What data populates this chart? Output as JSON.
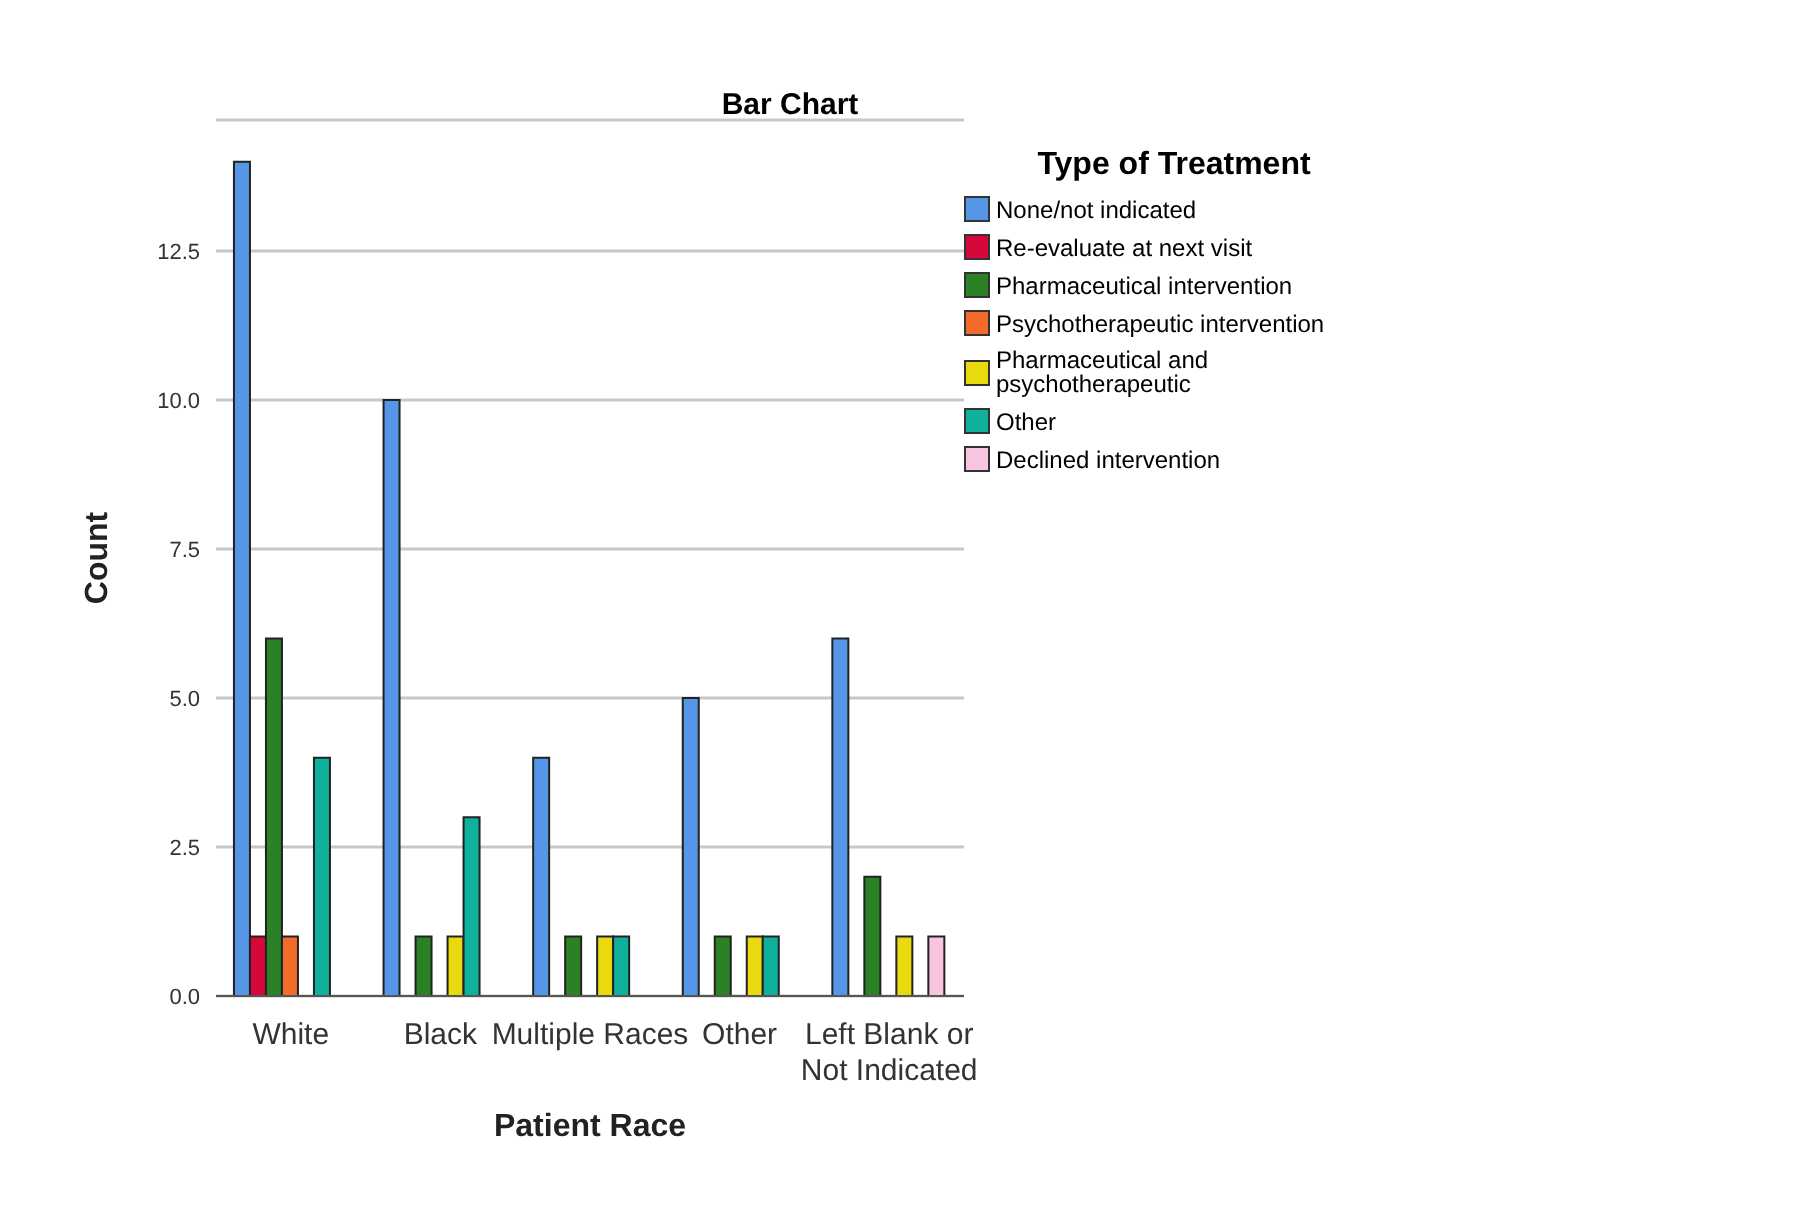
{
  "chart_data": {
    "type": "bar",
    "title": "Bar Chart",
    "xlabel": "Patient Race",
    "ylabel": "Count",
    "legend_title": "Type of Treatment",
    "categories": [
      "White",
      "Black",
      "Multiple Races",
      "Other",
      "Left Blank or Not Indicated"
    ],
    "series": [
      {
        "name": "None/not indicated",
        "color": "#5596e6",
        "values": [
          14,
          10,
          4,
          5,
          6
        ]
      },
      {
        "name": "Re-evaluate at next visit",
        "color": "#d6083b",
        "values": [
          1,
          0,
          0,
          0,
          0
        ]
      },
      {
        "name": "Pharmaceutical intervention",
        "color": "#2a8126",
        "values": [
          6,
          1,
          1,
          1,
          2
        ]
      },
      {
        "name": "Psychotherapeutic intervention",
        "color": "#f36b2a",
        "values": [
          1,
          0,
          0,
          0,
          0
        ]
      },
      {
        "name": "Pharmaceutical and psychotherapeutic",
        "color": "#e8da0e",
        "values": [
          0,
          1,
          1,
          1,
          1
        ]
      },
      {
        "name": "Other",
        "color": "#0fb09c",
        "values": [
          4,
          3,
          1,
          1,
          0
        ]
      },
      {
        "name": "Declined intervention",
        "color": "#f9c4e0",
        "values": [
          0,
          0,
          0,
          0,
          1
        ]
      }
    ],
    "ylim": [
      0,
      14.7
    ],
    "yticks": [
      {
        "value": 0,
        "label": "0.0"
      },
      {
        "value": 2.5,
        "label": "2.5"
      },
      {
        "value": 5,
        "label": "5.0"
      },
      {
        "value": 7.5,
        "label": "7.5"
      },
      {
        "value": 10,
        "label": "10.0"
      },
      {
        "value": 12.5,
        "label": "12.5"
      }
    ],
    "grid": "y",
    "legend": "right"
  }
}
